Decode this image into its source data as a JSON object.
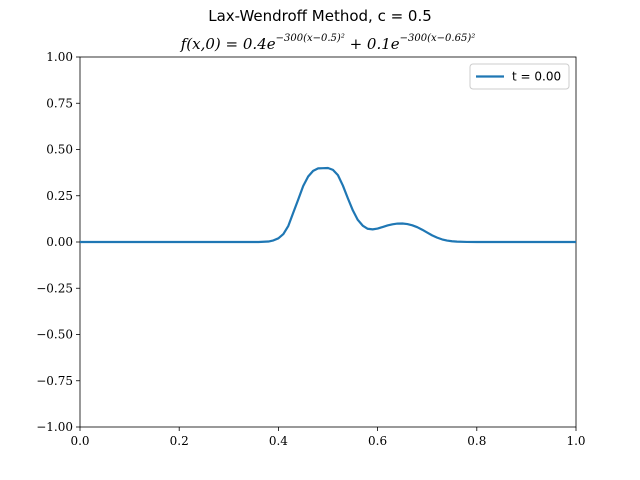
{
  "chart_data": {
    "type": "line",
    "title": "Lax-Wendroff Method, c = 0.5",
    "subtitle": {
      "lhs": "f(x,0) = 0.4e",
      "exp1": "−300(x−0.5)²",
      "mid": " + 0.1e",
      "exp2": "−300(x−0.65)²"
    },
    "xlabel": "",
    "ylabel": "",
    "xlim": [
      0.0,
      1.0
    ],
    "ylim": [
      -1.0,
      1.0
    ],
    "xticks": [
      0.0,
      0.2,
      0.4,
      0.6,
      0.8,
      1.0
    ],
    "xtick_labels": [
      "0.0",
      "0.2",
      "0.4",
      "0.6",
      "0.8",
      "1.0"
    ],
    "yticks": [
      -1.0,
      -0.75,
      -0.5,
      -0.25,
      0.0,
      0.25,
      0.5,
      0.75,
      1.0
    ],
    "ytick_labels": [
      "−1.00",
      "−0.75",
      "−0.50",
      "−0.25",
      "0.00",
      "0.25",
      "0.50",
      "0.75",
      "1.00"
    ],
    "grid": false,
    "legend_position": "top-right",
    "series": [
      {
        "name": "t = 0.00",
        "color": "#1f77b4",
        "x": [
          0.0,
          0.05,
          0.1,
          0.15,
          0.2,
          0.25,
          0.3,
          0.32,
          0.34,
          0.36,
          0.38,
          0.39,
          0.4,
          0.41,
          0.42,
          0.43,
          0.44,
          0.45,
          0.46,
          0.47,
          0.48,
          0.49,
          0.5,
          0.51,
          0.52,
          0.53,
          0.54,
          0.55,
          0.56,
          0.57,
          0.58,
          0.59,
          0.6,
          0.61,
          0.62,
          0.63,
          0.64,
          0.65,
          0.66,
          0.67,
          0.68,
          0.69,
          0.7,
          0.71,
          0.72,
          0.73,
          0.74,
          0.75,
          0.76,
          0.78,
          0.8,
          0.85,
          0.9,
          0.95,
          1.0
        ],
        "y": [
          0.0,
          0.0,
          0.0,
          0.0,
          0.0,
          0.0,
          0.0,
          0.0,
          0.0,
          0.0001,
          0.0026,
          0.0087,
          0.0199,
          0.0429,
          0.0871,
          0.159,
          0.2297,
          0.3029,
          0.3539,
          0.3845,
          0.3979,
          0.399,
          0.4,
          0.3898,
          0.3616,
          0.305,
          0.2363,
          0.1715,
          0.1199,
          0.0884,
          0.0715,
          0.0683,
          0.0727,
          0.081,
          0.0893,
          0.0957,
          0.0995,
          0.1,
          0.0969,
          0.0901,
          0.0801,
          0.0663,
          0.0508,
          0.0359,
          0.0236,
          0.0141,
          0.0079,
          0.0041,
          0.0019,
          0.0003,
          0.0,
          0.0,
          0.0,
          0.0,
          0.0
        ]
      }
    ]
  }
}
